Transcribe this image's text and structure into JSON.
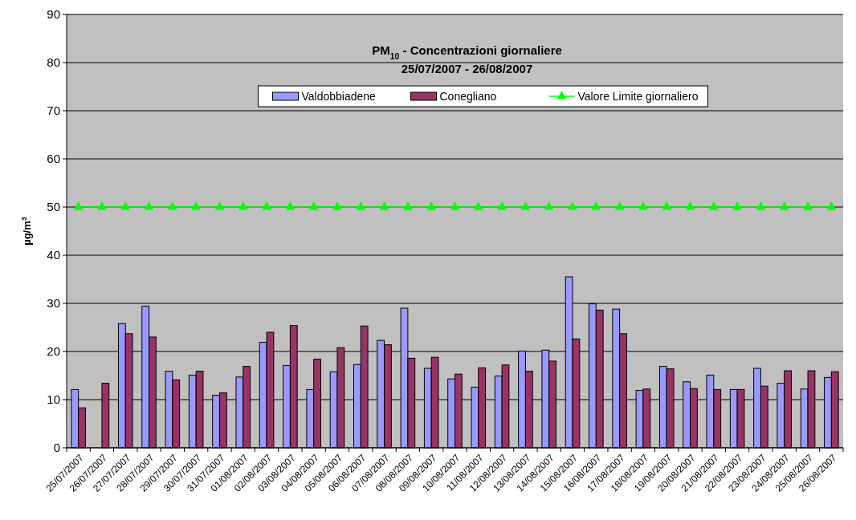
{
  "chart_data": {
    "type": "bar",
    "title": "PM$_{10}$ - Concentrazioni giornaliere",
    "subtitle": "25/07/2007 - 26/08/2007",
    "ylabel": "µg/m$^{3}$",
    "categories": [
      "25/07/2007",
      "26/07/2007",
      "27/07/2007",
      "28/07/2007",
      "29/07/2007",
      "30/07/2007",
      "31/07/2007",
      "01/08/2007",
      "02/08/2007",
      "03/08/2007",
      "04/08/2007",
      "05/08/2007",
      "06/08/2007",
      "07/08/2007",
      "08/08/2007",
      "09/08/2007",
      "10/08/2007",
      "11/08/2007",
      "12/08/2007",
      "13/08/2007",
      "14/08/2007",
      "15/08/2007",
      "16/08/2007",
      "17/08/2007",
      "18/08/2007",
      "19/08/2007",
      "20/08/2007",
      "21/08/2007",
      "22/08/2007",
      "23/08/2007",
      "24/08/2007",
      "25/08/2007",
      "26/08/2007"
    ],
    "series": [
      {
        "name": "Valdobbiadene",
        "color": "#9999ff",
        "values": [
          12.1,
          null,
          25.8,
          29.4,
          15.9,
          15.1,
          10.9,
          14.7,
          21.9,
          17.1,
          12.1,
          15.8,
          17.3,
          22.3,
          29.0,
          16.5,
          14.3,
          12.6,
          14.9,
          20.1,
          20.3,
          35.5,
          29.9,
          28.8,
          11.9,
          16.9,
          13.7,
          15.1,
          12.1,
          16.5,
          13.4,
          12.2,
          14.6
        ]
      },
      {
        "name": "Conegliano",
        "color": "#993366",
        "values": [
          8.3,
          13.4,
          23.7,
          23.0,
          14.1,
          15.9,
          11.4,
          16.9,
          24.0,
          25.4,
          18.4,
          20.8,
          25.3,
          21.4,
          18.6,
          18.8,
          15.3,
          16.6,
          17.2,
          15.9,
          18.0,
          22.6,
          28.6,
          23.7,
          12.2,
          16.4,
          12.3,
          12.1,
          12.1,
          12.8,
          16.0,
          16.0,
          15.8
        ]
      },
      {
        "name": "Valore Limite giornaliero",
        "type": "line",
        "color": "#00ff00",
        "marker": "triangle",
        "values": [
          50,
          50,
          50,
          50,
          50,
          50,
          50,
          50,
          50,
          50,
          50,
          50,
          50,
          50,
          50,
          50,
          50,
          50,
          50,
          50,
          50,
          50,
          50,
          50,
          50,
          50,
          50,
          50,
          50,
          50,
          50,
          50,
          50
        ]
      }
    ],
    "ylim": [
      0,
      90
    ],
    "yticks": [
      0,
      10,
      20,
      30,
      40,
      50,
      60,
      70,
      80,
      90
    ],
    "grid": "y",
    "legend": "top"
  }
}
